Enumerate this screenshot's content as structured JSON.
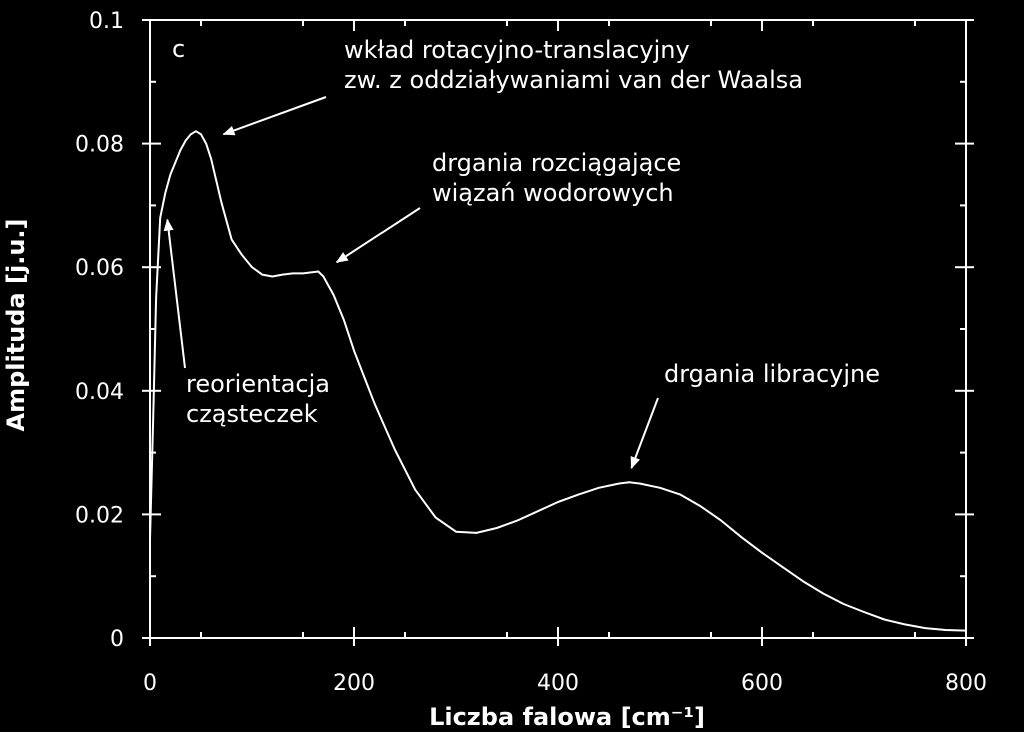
{
  "chart_data": {
    "type": "line",
    "panel_label": "c",
    "xlabel": "Liczba falowa [cm⁻¹]",
    "ylabel": "Amplituda [j.u.]",
    "xlim": [
      0,
      800
    ],
    "ylim": [
      0,
      0.1
    ],
    "xticks": [
      0,
      200,
      400,
      600,
      800
    ],
    "xtick_labels": [
      "0",
      "200",
      "400",
      "600",
      "800"
    ],
    "yticks": [
      0,
      0.02,
      0.04,
      0.06,
      0.08,
      0.1
    ],
    "ytick_labels": [
      "0",
      "0.02",
      "0.04",
      "0.06",
      "0.08",
      "0.1"
    ],
    "grid": false,
    "series": [
      {
        "color": "#ffffff",
        "x": [
          0,
          3,
          6,
          10,
          15,
          20,
          25,
          30,
          35,
          40,
          45,
          50,
          55,
          60,
          70,
          80,
          90,
          100,
          110,
          120,
          130,
          140,
          150,
          160,
          165,
          170,
          180,
          190,
          200,
          220,
          240,
          260,
          280,
          300,
          320,
          340,
          360,
          380,
          400,
          420,
          440,
          460,
          470,
          480,
          500,
          520,
          540,
          560,
          580,
          600,
          620,
          640,
          660,
          680,
          700,
          720,
          740,
          760,
          780,
          800
        ],
        "y": [
          0.016,
          0.035,
          0.055,
          0.068,
          0.072,
          0.075,
          0.077,
          0.079,
          0.0805,
          0.0815,
          0.082,
          0.0815,
          0.08,
          0.0775,
          0.0705,
          0.0645,
          0.062,
          0.06,
          0.0588,
          0.0585,
          0.0588,
          0.059,
          0.059,
          0.0592,
          0.0593,
          0.0585,
          0.0555,
          0.0515,
          0.0465,
          0.038,
          0.0305,
          0.024,
          0.0195,
          0.0172,
          0.017,
          0.0178,
          0.019,
          0.0205,
          0.022,
          0.0232,
          0.0243,
          0.025,
          0.0252,
          0.025,
          0.0243,
          0.0232,
          0.0213,
          0.019,
          0.0163,
          0.0138,
          0.0115,
          0.0092,
          0.0072,
          0.0055,
          0.0042,
          0.003,
          0.0022,
          0.0016,
          0.0013,
          0.0012
        ]
      }
    ],
    "annotations": [
      {
        "lines": [
          "wkład rotacyjno-translacyjny",
          "zw. z oddziaływaniami van der Waalsa"
        ],
        "points_to": [
          72,
          0.0815
        ]
      },
      {
        "lines": [
          "drgania rozciągające",
          "wiązań wodorowych"
        ],
        "points_to": [
          183,
          0.0608
        ]
      },
      {
        "lines": [
          "reorientacja",
          "cząsteczek"
        ],
        "points_to": [
          17,
          0.0677
        ]
      },
      {
        "lines": [
          "drgania libracyjne"
        ],
        "points_to": [
          472,
          0.0275
        ]
      }
    ]
  }
}
